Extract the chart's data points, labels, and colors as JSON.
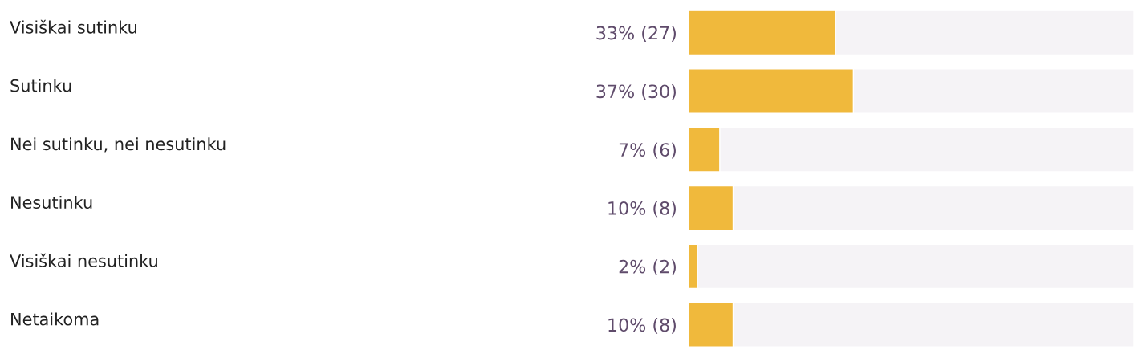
{
  "chart_data": {
    "type": "bar",
    "orientation": "horizontal",
    "categories": [
      "Visiškai sutinku",
      "Sutinku",
      "Nei sutinku, nei nesutinku",
      "Nesutinku",
      "Visiškai nesutinku",
      "Netaikoma"
    ],
    "values": [
      33,
      37,
      7,
      10,
      2,
      10
    ],
    "value_labels": [
      "33% (27)",
      "37% (30)",
      "7% (6)",
      "10% (8)",
      "2% (2)",
      "10% (8)"
    ],
    "color": "#f0b93c",
    "xlim": [
      0,
      100
    ]
  }
}
